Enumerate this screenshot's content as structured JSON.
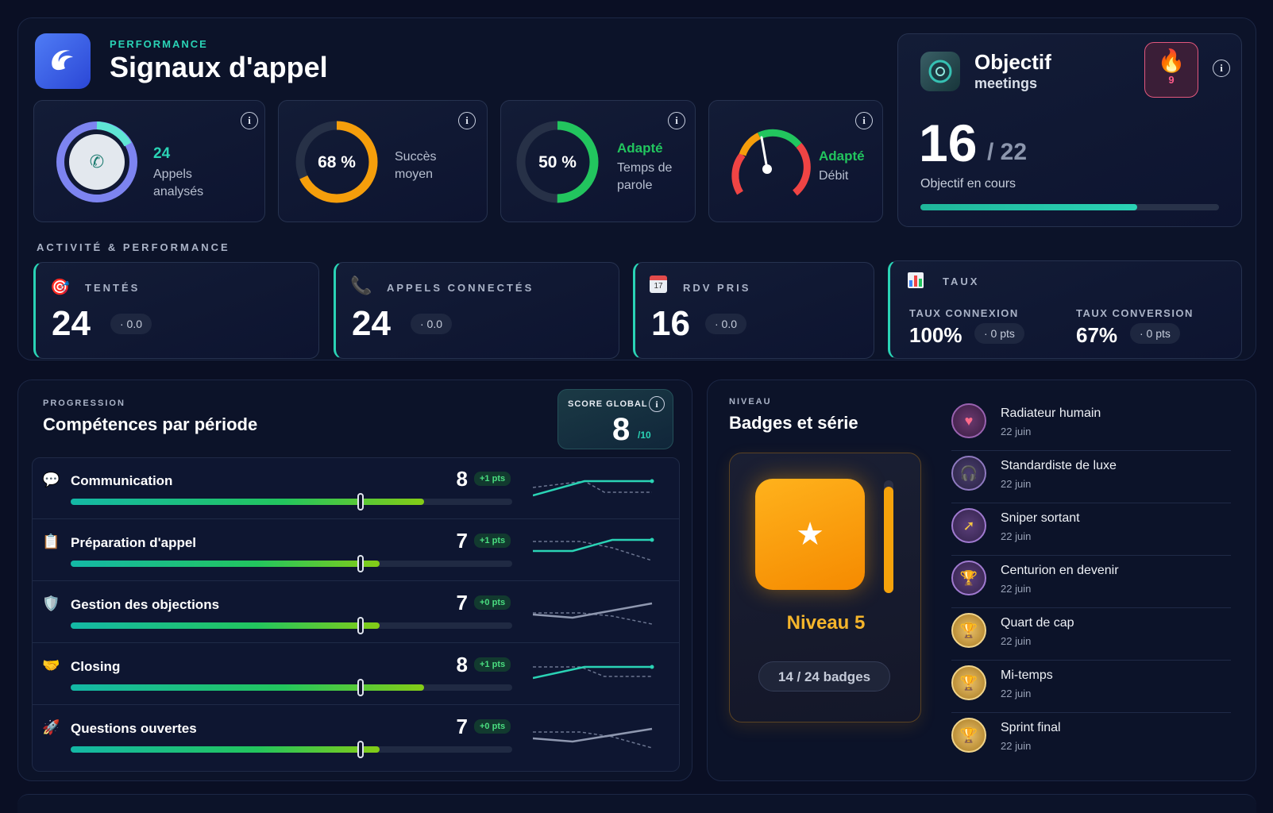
{
  "header": {
    "eyebrow": "PERFORMANCE",
    "title": "Signaux d'appel"
  },
  "kpis": {
    "appels": {
      "value": "24",
      "label1": "Appels",
      "label2": "analysés"
    },
    "succes": {
      "value": "68 %",
      "label1": "Succès",
      "label2": "moyen",
      "percent": 68
    },
    "parole": {
      "value": "50 %",
      "status": "Adapté",
      "label1": "Temps de",
      "label2": "parole",
      "percent": 50
    },
    "debit": {
      "status": "Adapté",
      "label": "Débit"
    }
  },
  "objectif": {
    "title": "Objectif",
    "subtitle": "meetings",
    "streak": "9",
    "current": "16",
    "total": "/ 22",
    "label": "Objectif en cours",
    "progress": 0.7273
  },
  "activity": {
    "section_title": "ACTIVITÉ & PERFORMANCE",
    "cards": [
      {
        "label": "TENTÉS",
        "value": "24",
        "delta": "· 0.0"
      },
      {
        "label": "APPELS CONNECTÉS",
        "value": "24",
        "delta": "· 0.0"
      },
      {
        "label": "RDV PRIS",
        "value": "16",
        "delta": "· 0.0",
        "cal_day": "17"
      }
    ],
    "taux": {
      "title": "TAUX",
      "connexion": {
        "label": "TAUX CONNEXION",
        "value": "100%",
        "delta": "· 0 pts"
      },
      "conversion": {
        "label": "TAUX CONVERSION",
        "value": "67%",
        "delta": "· 0 pts"
      }
    }
  },
  "progression": {
    "eyebrow": "PROGRESSION",
    "title": "Compétences par période",
    "score_label": "SCORE GLOBAL",
    "score_value": "8",
    "score_max": "/10",
    "skills": [
      {
        "name": "Communication",
        "score": "8",
        "delta": "+1 pts",
        "fill": 0.8
      },
      {
        "name": "Préparation d'appel",
        "score": "7",
        "delta": "+1 pts",
        "fill": 0.7
      },
      {
        "name": "Gestion des objections",
        "score": "7",
        "delta": "+0 pts",
        "fill": 0.7
      },
      {
        "name": "Closing",
        "score": "8",
        "delta": "+1 pts",
        "fill": 0.8
      },
      {
        "name": "Questions ouvertes",
        "score": "7",
        "delta": "+0 pts",
        "fill": 0.7
      }
    ]
  },
  "badges": {
    "eyebrow": "NIVEAU",
    "title": "Badges et série",
    "level": "Niveau 5",
    "count": "14 / 24 badges",
    "list": [
      {
        "name": "Radiateur humain",
        "date": "22 juin",
        "icon": "heart-icon"
      },
      {
        "name": "Standardiste de luxe",
        "date": "22 juin",
        "icon": "headset-icon"
      },
      {
        "name": "Sniper sortant",
        "date": "22 juin",
        "icon": "arrow-up-icon"
      },
      {
        "name": "Centurion en devenir",
        "date": "22 juin",
        "icon": "trophy-icon"
      },
      {
        "name": "Quart de cap",
        "date": "22 juin",
        "icon": "trophy-icon"
      },
      {
        "name": "Mi-temps",
        "date": "22 juin",
        "icon": "trophy-icon"
      },
      {
        "name": "Sprint final",
        "date": "22 juin",
        "icon": "trophy-icon"
      }
    ]
  },
  "colors": {
    "teal": "#2ad3b5",
    "green": "#22c55e",
    "orange": "#f59e0b",
    "bg": "#0a0f24"
  }
}
